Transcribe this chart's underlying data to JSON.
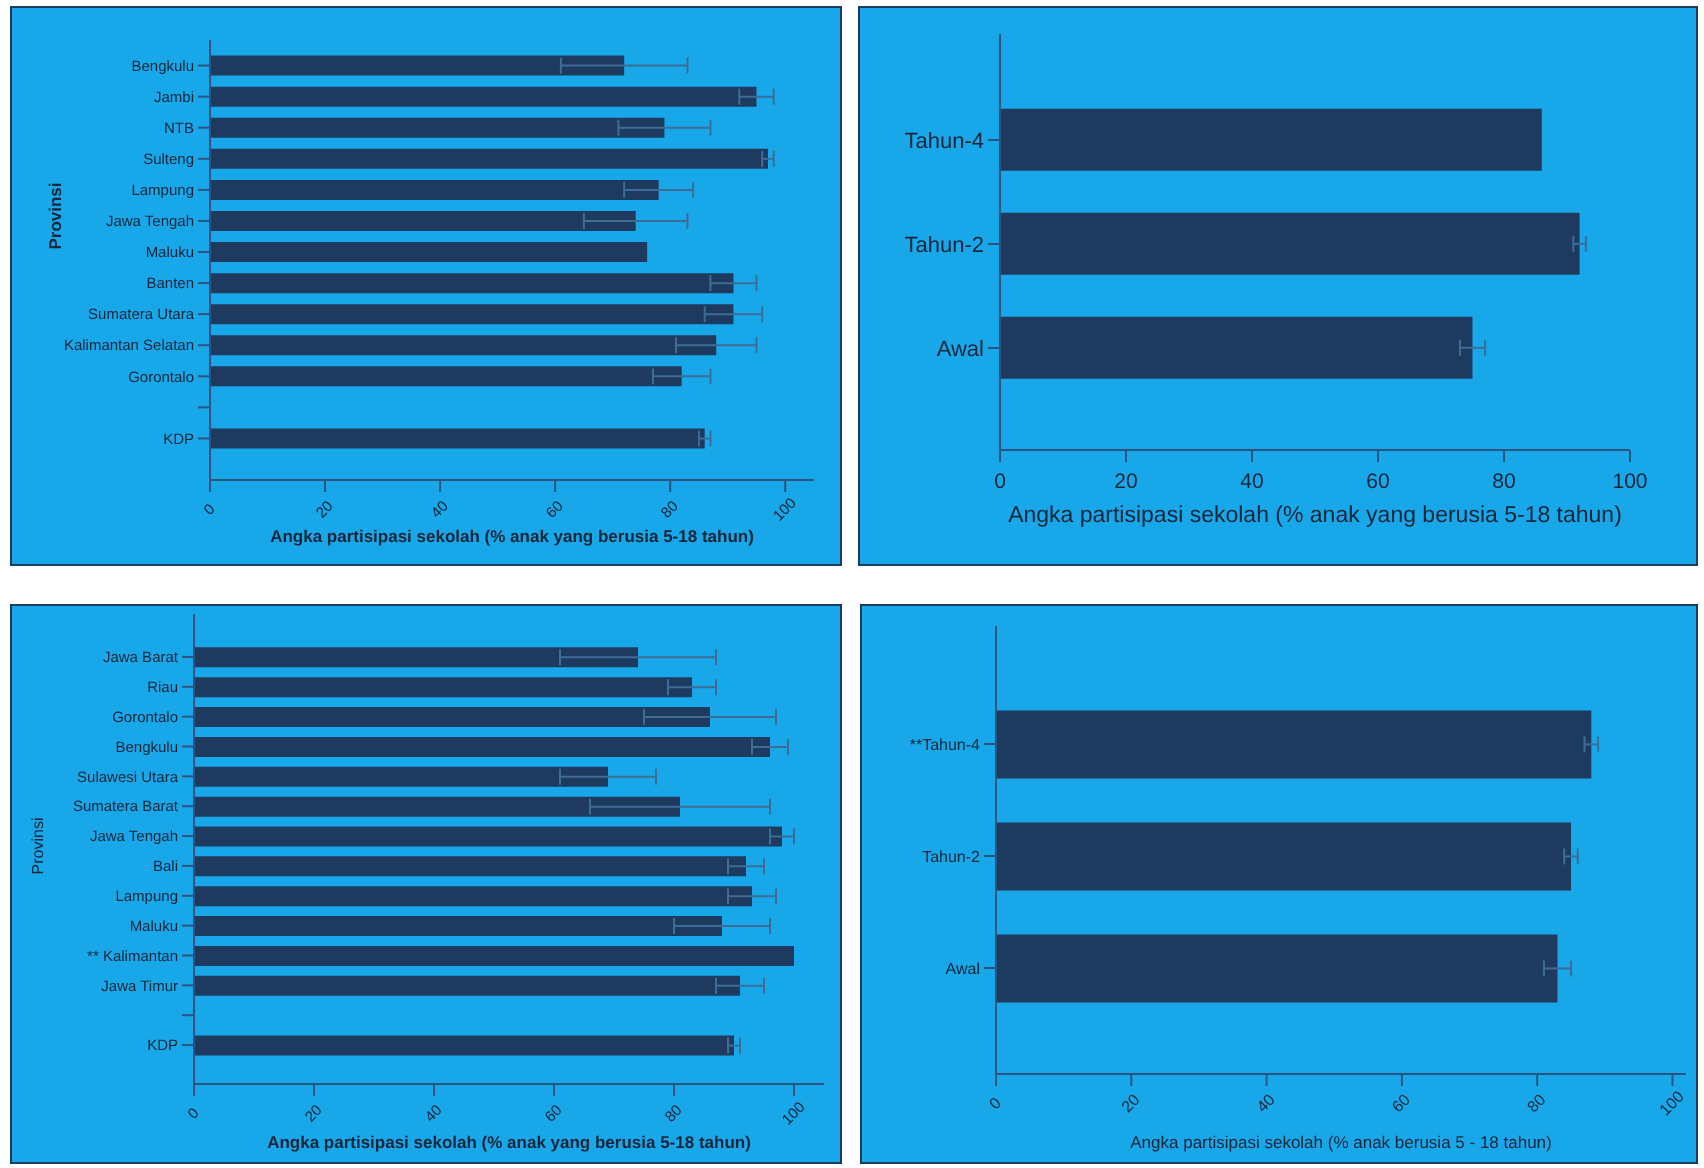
{
  "chart_data": [
    {
      "type": "bar",
      "orientation": "horizontal",
      "categories": [
        "Bengkulu",
        "Jambi",
        "NTB",
        "Sulteng",
        "Lampung",
        "Jawa Tengah",
        "Maluku",
        "Banten",
        "Sumatera Utara",
        "Kalimantan Selatan",
        "Gorontalo",
        null,
        "KDP"
      ],
      "values": [
        72,
        95,
        79,
        97,
        78,
        74,
        76,
        91,
        91,
        88,
        82,
        null,
        86
      ],
      "errors": [
        11,
        3,
        8,
        1,
        6,
        9,
        null,
        4,
        5,
        7,
        5,
        null,
        1
      ],
      "color": "#1e3a5f",
      "xlabel": "Angka partisipasi sekolah (% anak yang berusia 5-18 tahun)",
      "ylabel": "Provinsi",
      "xlim": [
        0,
        105
      ],
      "xticks": [
        0,
        20,
        40,
        60,
        80,
        100
      ]
    },
    {
      "type": "bar",
      "orientation": "horizontal",
      "categories": [
        "Tahun-4",
        "Tahun-2",
        "Awal"
      ],
      "values": [
        86,
        92,
        75
      ],
      "errors": [
        null,
        1,
        2
      ],
      "color": "#1e3a5f",
      "xlabel": "Angka partisipasi sekolah (% anak yang berusia 5-18 tahun)",
      "xlim": [
        0,
        100
      ],
      "xticks": [
        0,
        20,
        40,
        60,
        80,
        100
      ]
    },
    {
      "type": "bar",
      "orientation": "horizontal",
      "categories": [
        "Jawa Barat",
        "Riau",
        "Gorontalo",
        "Bengkulu",
        "Sulawesi Utara",
        "Sumatera Barat",
        "Jawa Tengah",
        "Bali",
        "Lampung",
        "Maluku",
        "** Kalimantan",
        "Jawa Timur",
        null,
        "KDP"
      ],
      "values": [
        74,
        83,
        86,
        96,
        69,
        81,
        98,
        92,
        93,
        88,
        100,
        91,
        null,
        90
      ],
      "errors": [
        13,
        4,
        11,
        3,
        8,
        15,
        2,
        3,
        4,
        8,
        null,
        4,
        null,
        1
      ],
      "color": "#1e3a5f",
      "xlabel": "Angka partisipasi sekolah (% anak yang berusia 5-18 tahun)",
      "ylabel": "Provinsi",
      "xlim": [
        0,
        105
      ],
      "xticks": [
        0,
        20,
        40,
        60,
        80,
        100
      ]
    },
    {
      "type": "bar",
      "orientation": "horizontal",
      "categories": [
        "**Tahun-4",
        "Tahun-2",
        "Awal"
      ],
      "values": [
        88,
        85,
        83
      ],
      "errors": [
        1,
        1,
        2
      ],
      "color": "#1e3a5f",
      "xlabel": "Angka partisipasi sekolah (% anak berusia 5 - 18 tahun)",
      "xlim": [
        0,
        102
      ],
      "xticks": [
        0,
        20,
        40,
        60,
        80,
        100
      ]
    }
  ]
}
